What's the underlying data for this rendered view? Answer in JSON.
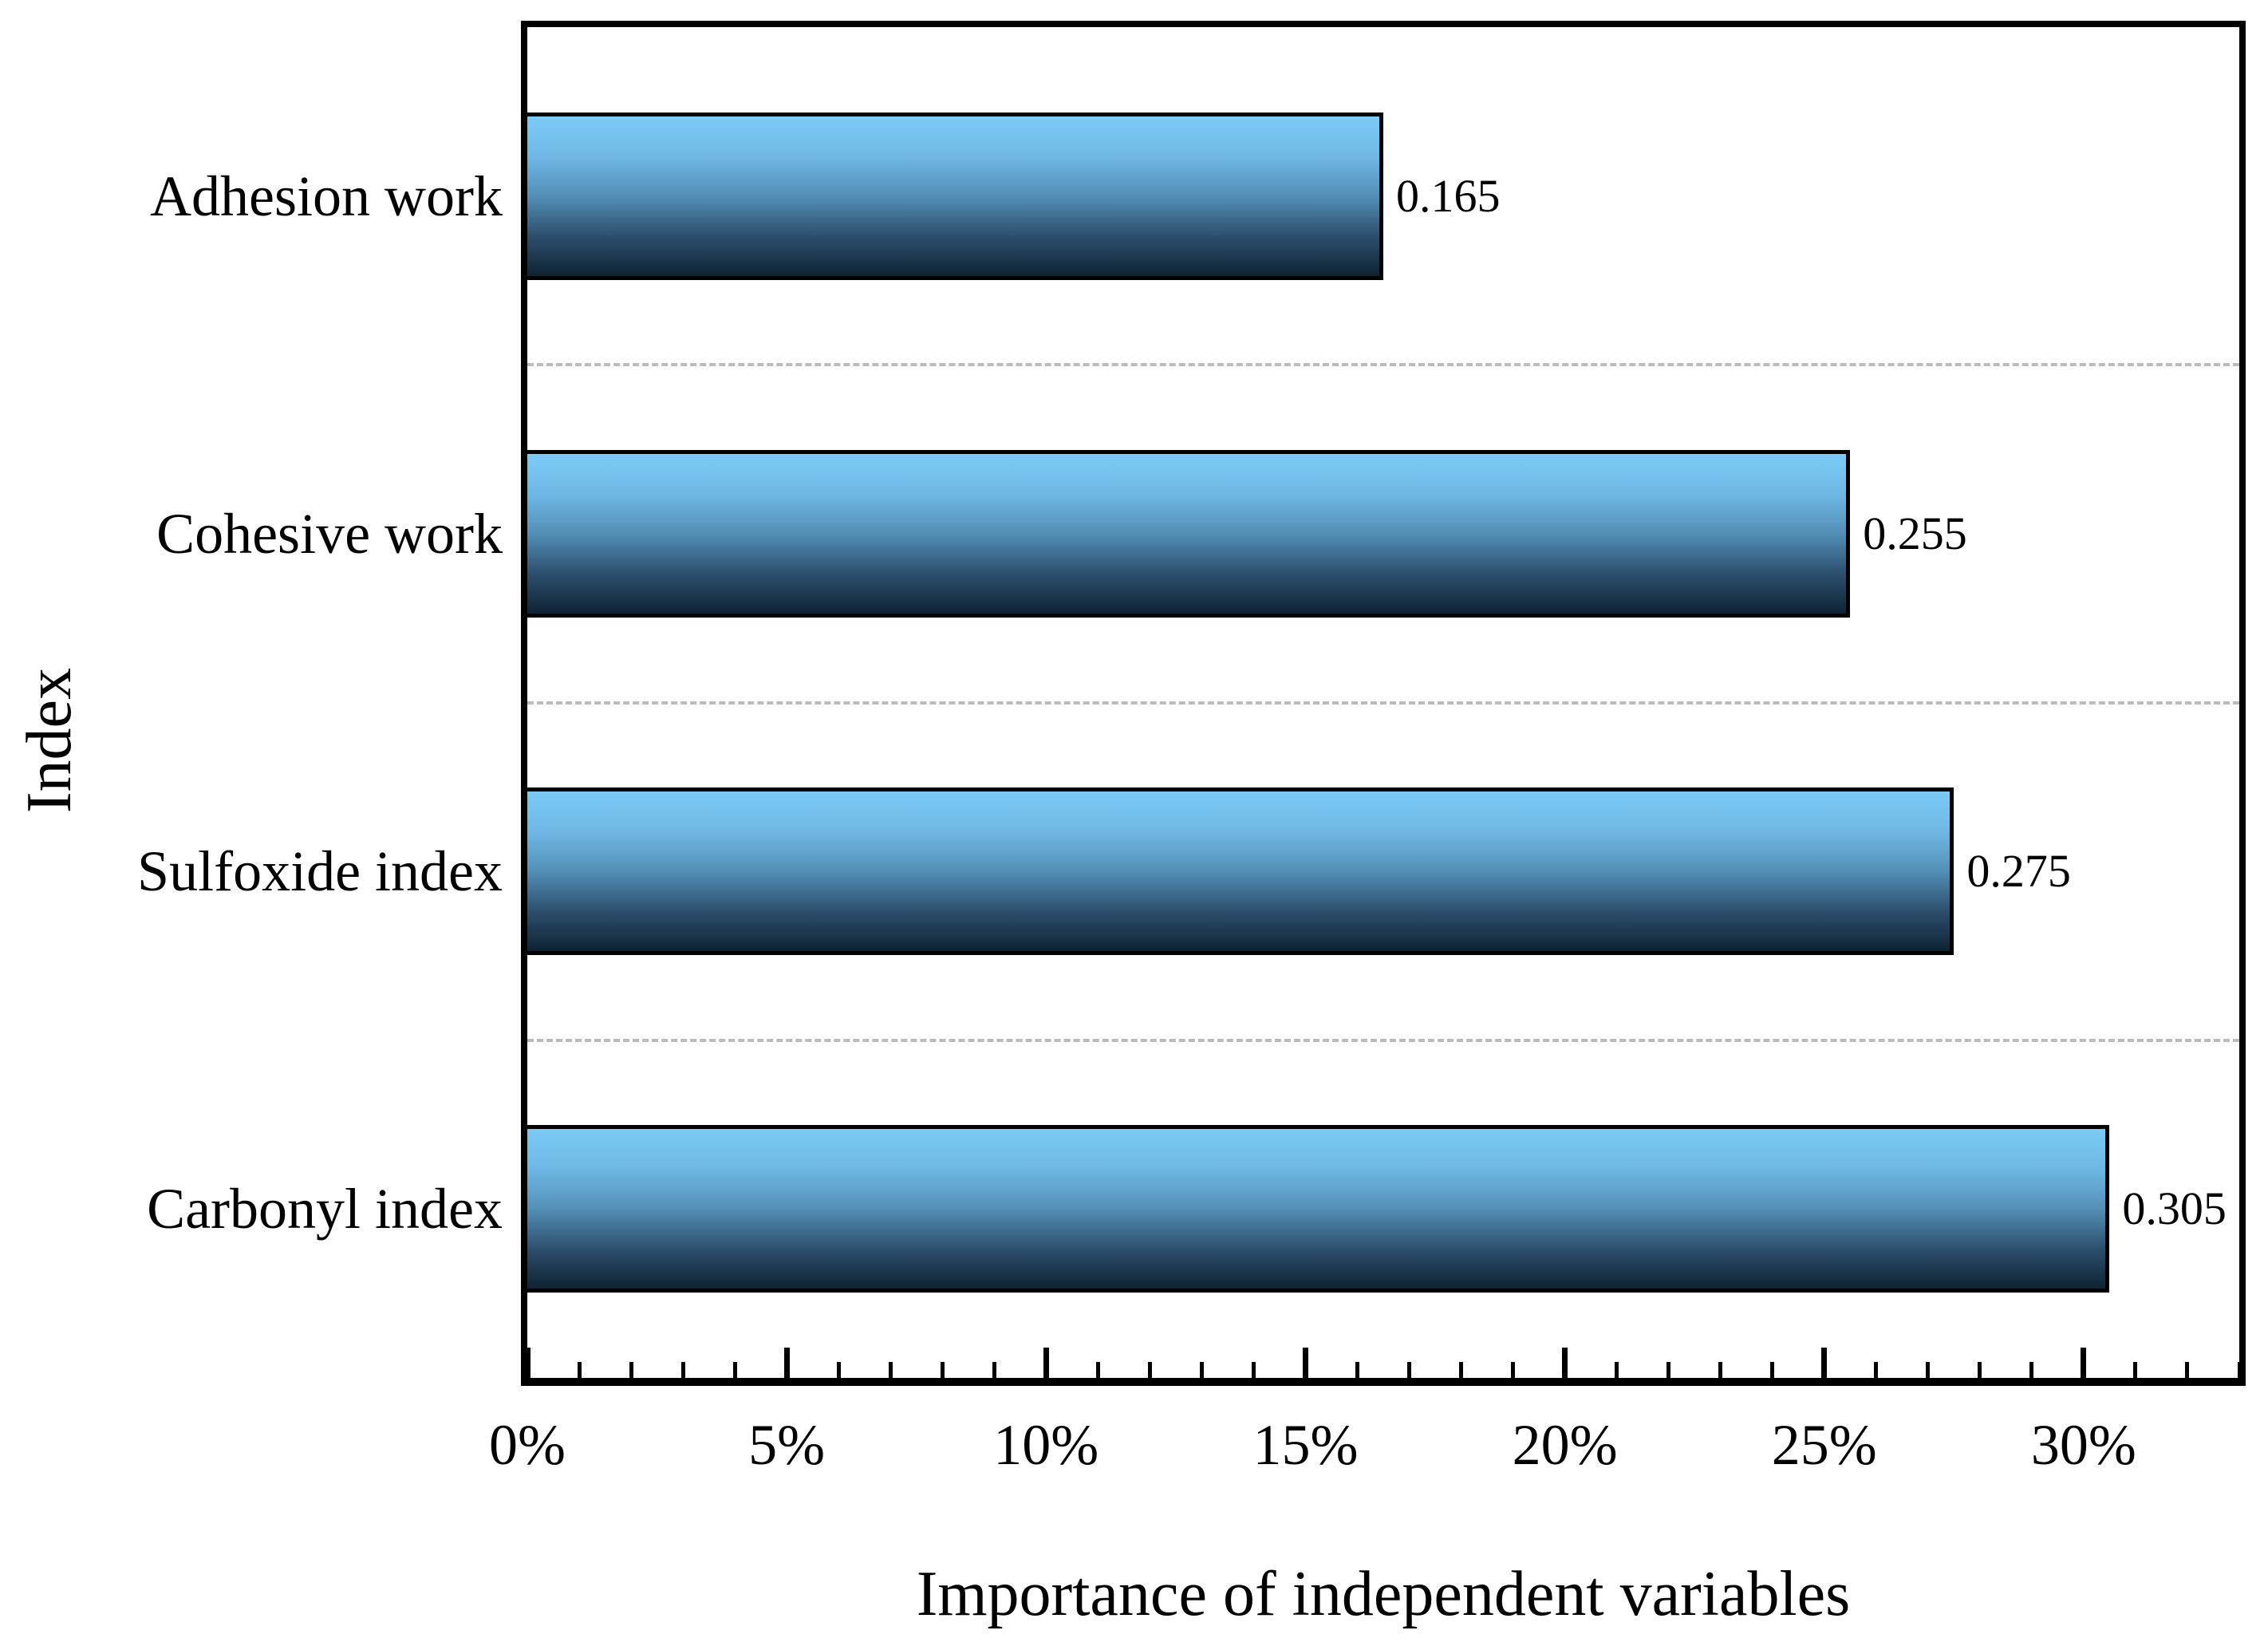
{
  "chart_data": {
    "type": "bar",
    "orientation": "horizontal",
    "title": "",
    "xlabel": "Importance of independent variables",
    "ylabel": "Index",
    "categories": [
      "Adhesion work",
      "Cohesive work",
      "Sulfoxide index",
      "Carbonyl index"
    ],
    "values": [
      0.165,
      0.255,
      0.275,
      0.305
    ],
    "value_labels": [
      "0.165",
      "0.255",
      "0.275",
      "0.305"
    ],
    "values_as_percent": [
      16.5,
      25.5,
      27.5,
      30.5
    ],
    "x_axis": {
      "tick_values": [
        0,
        5,
        10,
        15,
        20,
        25,
        30
      ],
      "tick_labels": [
        "0%",
        "5%",
        "10%",
        "15%",
        "20%",
        "25%",
        "30%"
      ],
      "minor_tick_step": 1,
      "range": [
        0,
        33
      ]
    },
    "grid": {
      "show": true,
      "style": "dashed",
      "position": "between-categories"
    },
    "legend": {
      "show": false
    },
    "colors": {
      "bar_gradient_top": "#7ccaf7",
      "bar_gradient_upper_mid": "#6fb8e6",
      "bar_gradient_mid": "#538fb6",
      "bar_gradient_lower_mid": "#2d4f6d",
      "bar_gradient_bottom": "#0e2334",
      "bar_border": "#000000",
      "gridline": "#bbbbbb",
      "axis": "#000000",
      "text": "#000000",
      "background": "#ffffff"
    }
  }
}
